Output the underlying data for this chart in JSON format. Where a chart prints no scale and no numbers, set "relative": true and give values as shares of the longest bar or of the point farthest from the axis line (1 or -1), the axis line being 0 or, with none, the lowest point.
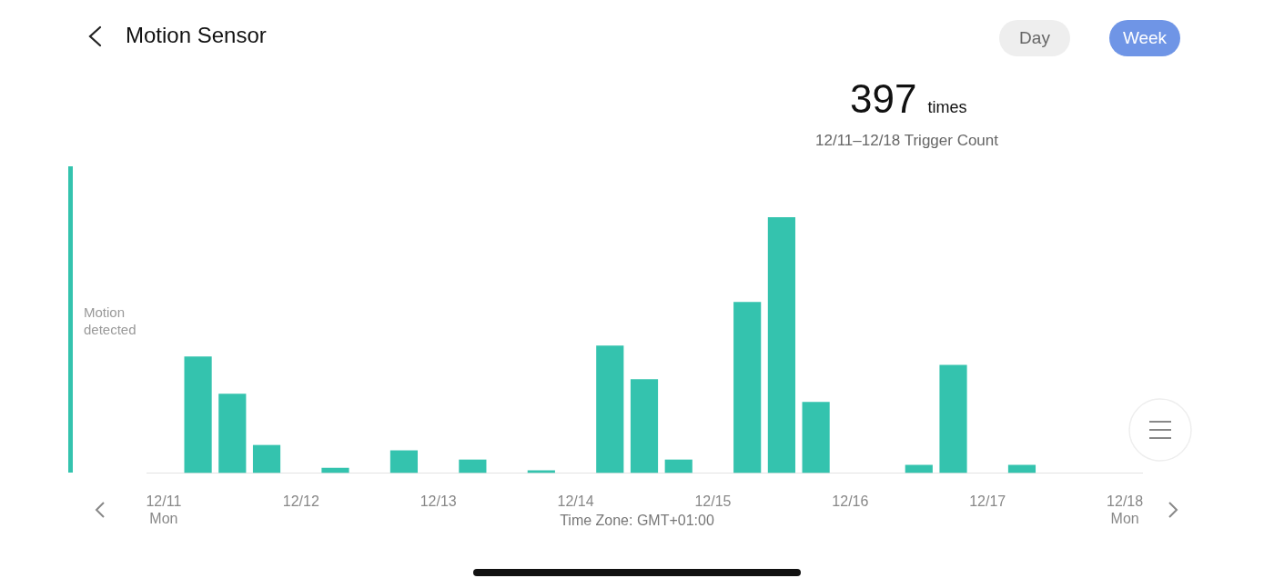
{
  "chart_data": {
    "type": "bar",
    "title": "Motion Sensor",
    "subtitle": "12/11–12/18 Trigger Count",
    "ylabel": "Motion detected",
    "xlabel": "Time Zone: GMT+01:00",
    "annotations": [
      "Day",
      "Week",
      "397 times"
    ],
    "relative": true,
    "grid": false,
    "legend": false,
    "categories": [
      "12/11\nMon",
      null,
      null,
      null,
      "12/12",
      null,
      null,
      null,
      "12/13",
      null,
      null,
      null,
      "12/14",
      null,
      null,
      null,
      "12/15",
      null,
      null,
      null,
      "12/16",
      null,
      null,
      null,
      "12/17",
      null,
      null,
      null,
      "12/18\nMon"
    ],
    "color": "#34c3ae",
    "values": [
      0,
      0.456,
      0.31,
      0.11,
      0,
      0.021,
      0,
      0.089,
      0,
      0.053,
      0,
      0.011,
      0,
      0.498,
      0.367,
      0.053,
      0,
      0.669,
      1,
      0.278,
      0,
      0,
      0.032,
      0.423,
      0,
      0.032,
      0,
      0,
      0
    ]
  }
}
